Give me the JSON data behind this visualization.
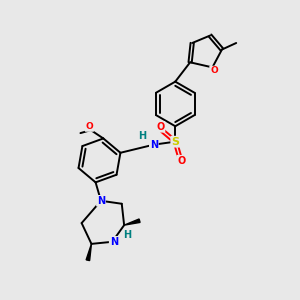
{
  "background_color": "#e8e8e8",
  "bond_color": "#000000",
  "atom_N": "#0000ff",
  "atom_O": "#ff0000",
  "atom_S": "#cccc00",
  "atom_H": "#008080",
  "figsize": [
    3.0,
    3.0
  ],
  "dpi": 100,
  "xlim": [
    0,
    10
  ],
  "ylim": [
    0,
    10
  ],
  "lw": 1.4,
  "fs": 7.0
}
